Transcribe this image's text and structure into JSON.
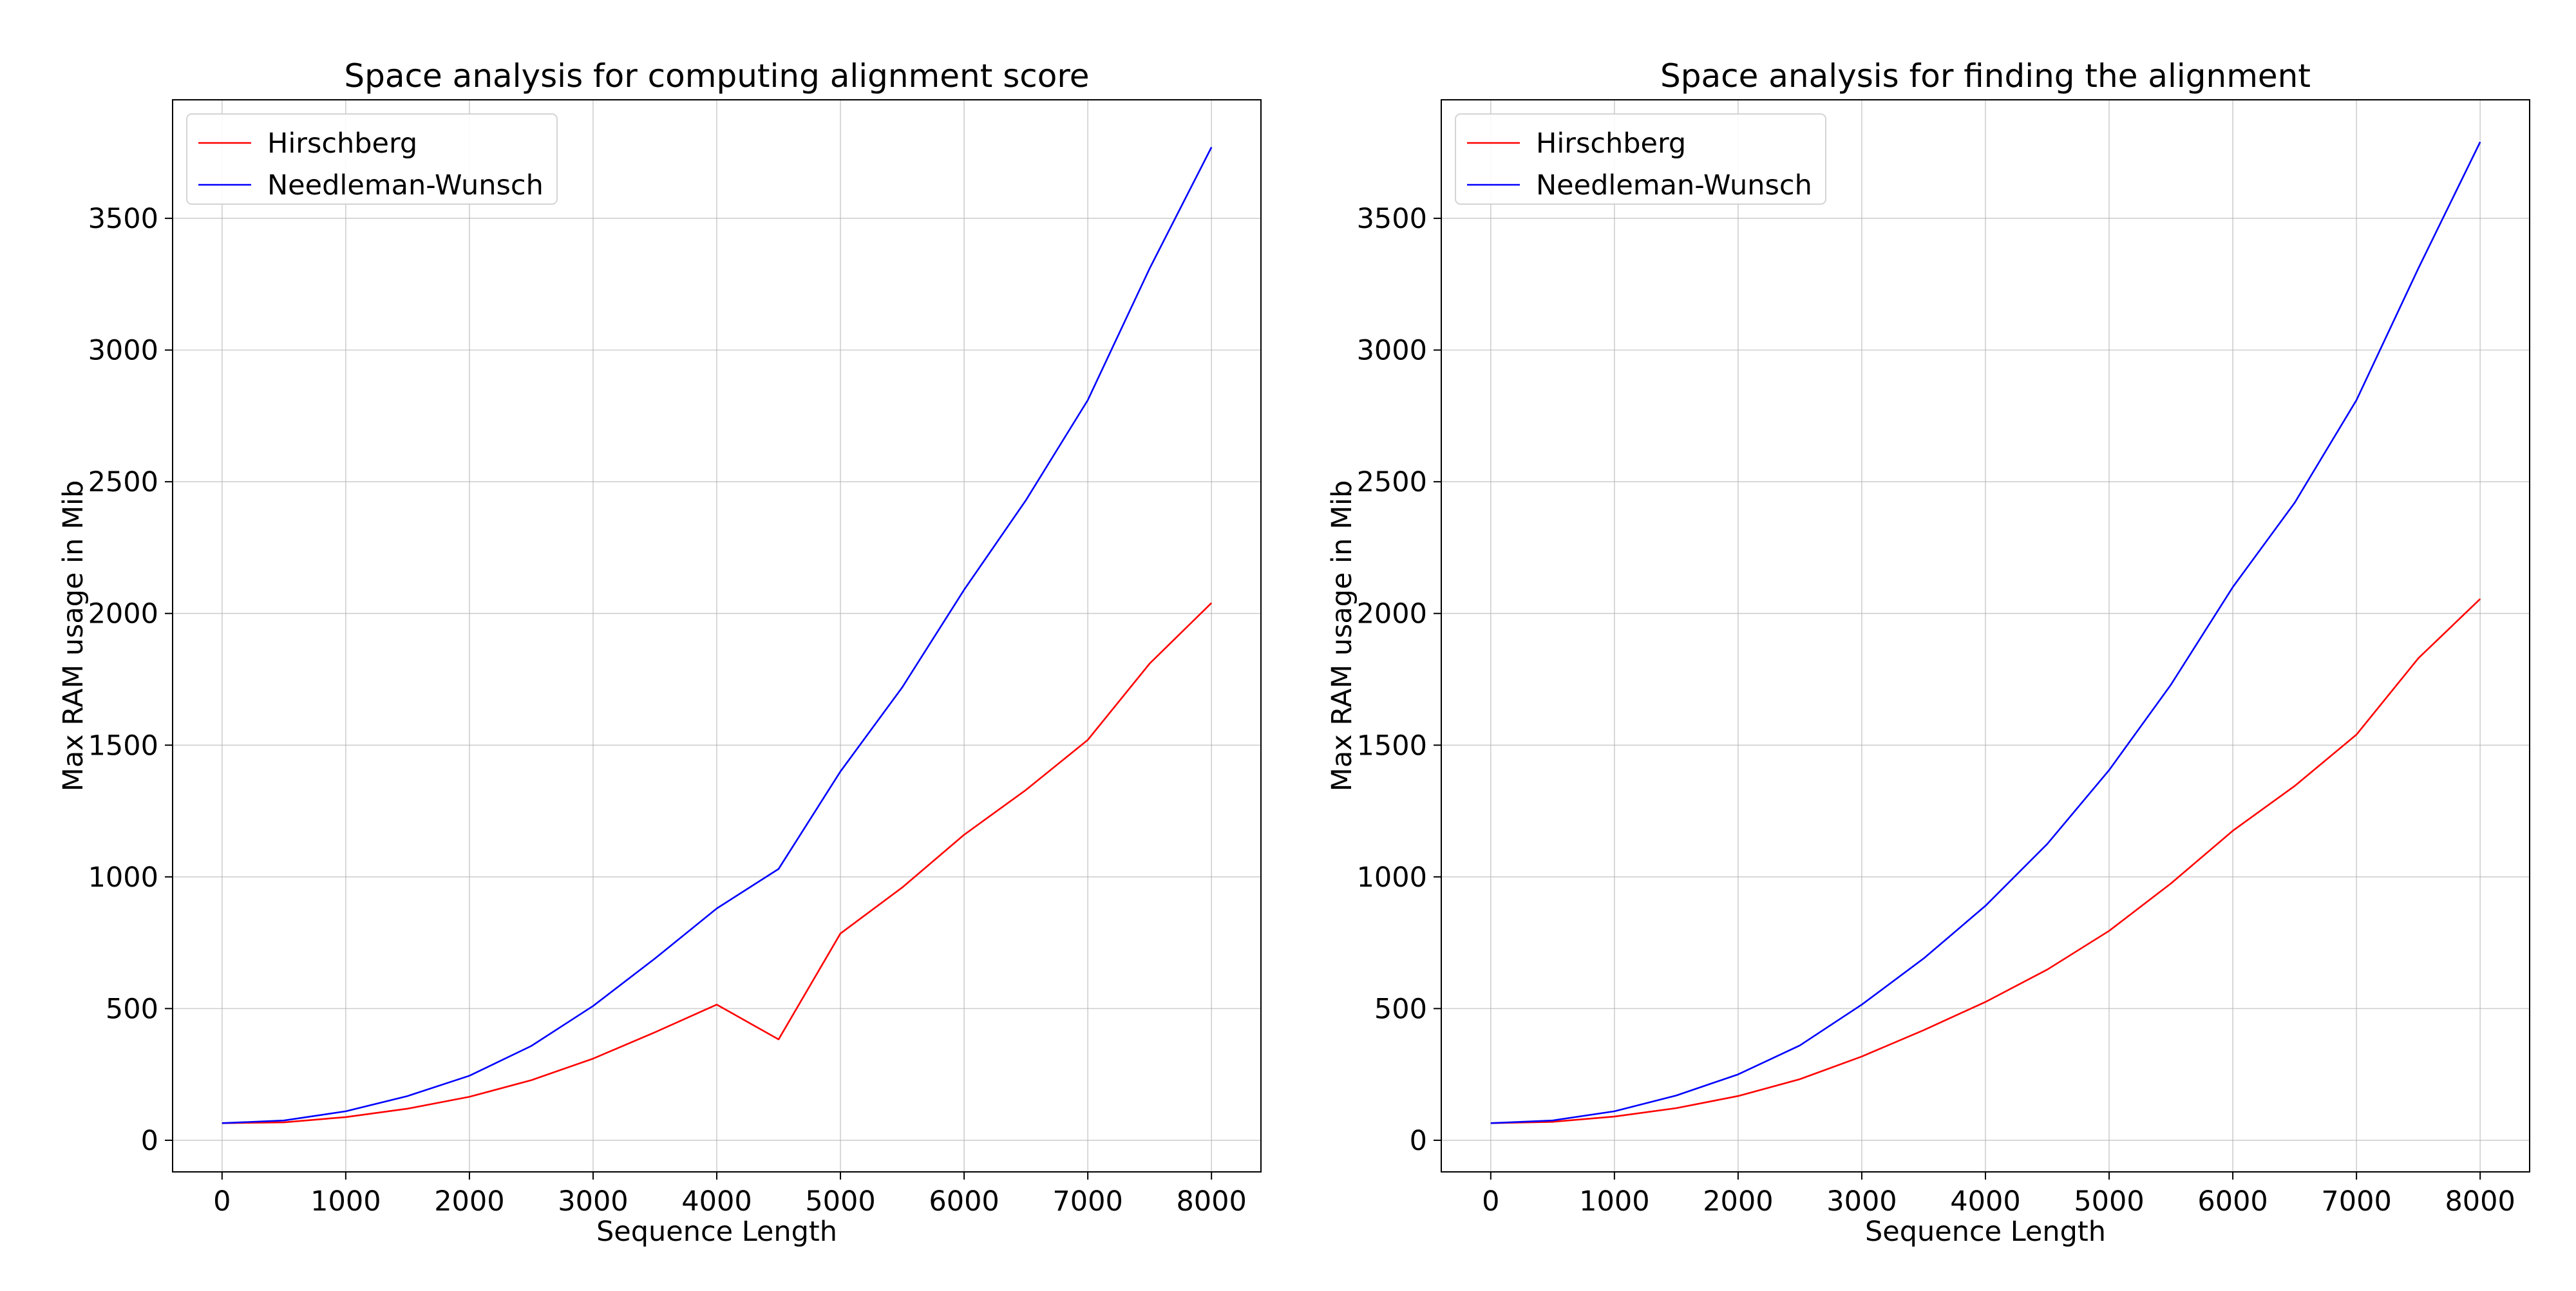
{
  "chart_data": [
    {
      "type": "line",
      "title": "Space analysis for computing alignment score",
      "xlabel": "Sequence Length",
      "ylabel": "Max RAM usage in Mib",
      "xlim": [
        -400,
        8400
      ],
      "ylim": [
        -120,
        3950
      ],
      "xticks": [
        0,
        1000,
        2000,
        3000,
        4000,
        5000,
        6000,
        7000,
        8000
      ],
      "yticks": [
        0,
        500,
        1000,
        1500,
        2000,
        2500,
        3000,
        3500
      ],
      "grid": true,
      "legend_position": "top-left",
      "x": [
        0,
        500,
        1000,
        1500,
        2000,
        2500,
        3000,
        3500,
        4000,
        4500,
        5000,
        5500,
        6000,
        6500,
        7000,
        7500,
        8000
      ],
      "series": [
        {
          "name": "Hirschberg",
          "color": "#ff0000",
          "values": [
            65,
            68,
            88,
            120,
            165,
            228,
            310,
            410,
            515,
            383,
            785,
            960,
            1160,
            1330,
            1520,
            1810,
            2040
          ]
        },
        {
          "name": "Needleman-Wunsch",
          "color": "#0000ff",
          "values": [
            65,
            75,
            110,
            168,
            245,
            358,
            510,
            690,
            880,
            1030,
            1400,
            1720,
            2090,
            2430,
            2810,
            3310,
            3770
          ]
        }
      ]
    },
    {
      "type": "line",
      "title": "Space analysis for finding the alignment",
      "xlabel": "Sequence Length",
      "ylabel": "Max RAM usage in Mib",
      "xlim": [
        -400,
        8400
      ],
      "ylim": [
        -120,
        3950
      ],
      "xticks": [
        0,
        1000,
        2000,
        3000,
        4000,
        5000,
        6000,
        7000,
        8000
      ],
      "yticks": [
        0,
        500,
        1000,
        1500,
        2000,
        2500,
        3000,
        3500
      ],
      "grid": true,
      "legend_position": "top-left",
      "x": [
        0,
        500,
        1000,
        1500,
        2000,
        2500,
        3000,
        3500,
        4000,
        4500,
        5000,
        5500,
        6000,
        6500,
        7000,
        7500,
        8000
      ],
      "series": [
        {
          "name": "Hirschberg",
          "color": "#ff0000",
          "values": [
            65,
            70,
            90,
            122,
            168,
            232,
            318,
            418,
            525,
            648,
            795,
            975,
            1175,
            1345,
            1540,
            1830,
            2055
          ]
        },
        {
          "name": "Needleman-Wunsch",
          "color": "#0000ff",
          "values": [
            65,
            75,
            110,
            170,
            250,
            360,
            515,
            690,
            890,
            1125,
            1405,
            1730,
            2100,
            2420,
            2810,
            3310,
            3790
          ]
        }
      ]
    }
  ]
}
